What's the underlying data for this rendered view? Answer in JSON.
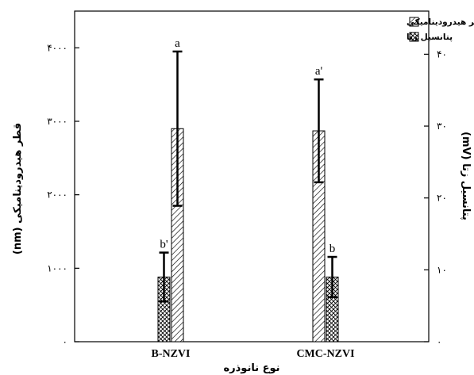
{
  "chart_data": {
    "type": "bar",
    "categories": [
      "B-NZVI",
      "CMC-NZVI"
    ],
    "xlabel": "نوع نانوذره",
    "left_axis": {
      "label": "قطر هیدرودینامیکی (nm)",
      "ylim": [
        0,
        4500
      ],
      "ticks": [
        0,
        1000,
        2000,
        3000,
        4000
      ],
      "tick_labels": [
        "۰",
        "۱۰۰۰",
        "۲۰۰۰",
        "۳۰۰۰",
        "۴۰۰۰"
      ]
    },
    "right_axis": {
      "label": "پتانسیل زتا (mV)",
      "ylim": [
        0,
        46
      ],
      "ticks": [
        0,
        10,
        20,
        30,
        40
      ],
      "tick_labels": [
        "۰",
        "۱۰",
        "۲۰",
        "۳۰",
        "۴۰"
      ]
    },
    "series": [
      {
        "name": "قطر هیدرودینامیکی",
        "axis": "left",
        "pattern": "diagonal",
        "values": [
          2900,
          2870
        ],
        "errors": [
          1050,
          700
        ],
        "labels": [
          "a",
          "a'"
        ]
      },
      {
        "name": "پتانسیل زتا",
        "axis": "right",
        "pattern": "crosshatch",
        "values": [
          9,
          9
        ],
        "errors": [
          3.4,
          2.8
        ],
        "labels": [
          "b'",
          "b"
        ]
      }
    ],
    "legend_position": "top-right"
  }
}
